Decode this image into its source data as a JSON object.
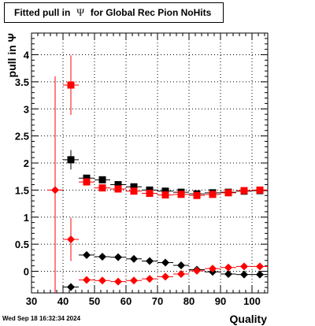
{
  "window": {
    "title_prefix": "Fitted pull in",
    "title_symbol": "Ψ",
    "title_suffix": "for Global Rec Pion NoHits",
    "footer": "Wed Sep 18 16:32:34 2024"
  },
  "chart_data": {
    "type": "scatter",
    "title": "Fitted pull in Ψ for Global Rec Pion NoHits",
    "xlabel": "Quality",
    "ylabel": "pull in Ψ",
    "xlim": [
      30,
      105
    ],
    "ylim": [
      -0.4,
      4.4
    ],
    "xticks": [
      30,
      40,
      50,
      60,
      70,
      80,
      90,
      100
    ],
    "yticks": [
      0,
      0.5,
      1,
      1.5,
      2,
      2.5,
      3,
      3.5,
      4
    ],
    "xtick_labels": [
      "30",
      "40",
      "50",
      "60",
      "70",
      "80",
      "90",
      "100"
    ],
    "ytick_labels": [
      "0",
      "0.5",
      "1",
      "1.5",
      "2",
      "2.5",
      "3",
      "3.5",
      "4"
    ],
    "grid": true,
    "series": [
      {
        "marker": "square",
        "color": "#000000",
        "x": [
          42.5,
          47.5,
          52.5,
          57.5,
          62.5,
          67.5,
          72.5,
          77.5,
          82.5,
          87.5,
          92.5,
          97.5,
          102.5
        ],
        "y": [
          2.06,
          1.72,
          1.69,
          1.6,
          1.56,
          1.5,
          1.48,
          1.46,
          1.43,
          1.45,
          1.46,
          1.48,
          1.49
        ],
        "yerr": [
          0.18,
          0.05,
          0.04,
          0.03,
          0.03,
          0.02,
          0.02,
          0.02,
          0.02,
          0.02,
          0.02,
          0.02,
          0.02
        ]
      },
      {
        "marker": "square",
        "color": "#ff0000",
        "x": [
          42.5,
          47.5,
          52.5,
          57.5,
          62.5,
          67.5,
          72.5,
          77.5,
          82.5,
          87.5,
          92.5,
          97.5,
          102.5
        ],
        "y": [
          3.44,
          1.65,
          1.54,
          1.52,
          1.48,
          1.44,
          1.41,
          1.42,
          1.4,
          1.42,
          1.45,
          1.49,
          1.5
        ],
        "yerr": [
          0.55,
          0.05,
          0.04,
          0.03,
          0.03,
          0.03,
          0.03,
          0.02,
          0.02,
          0.02,
          0.02,
          0.02,
          0.02
        ]
      },
      {
        "marker": "diamond",
        "color": "#000000",
        "x": [
          42.5,
          47.5,
          52.5,
          57.5,
          62.5,
          67.5,
          72.5,
          77.5,
          82.5,
          87.5,
          92.5,
          97.5,
          102.5
        ],
        "y": [
          -0.29,
          0.3,
          0.27,
          0.26,
          0.23,
          0.19,
          0.16,
          0.11,
          0.03,
          -0.01,
          -0.05,
          -0.06,
          -0.06
        ],
        "yerr": [
          0.07,
          0.03,
          0.02,
          0.02,
          0.02,
          0.02,
          0.02,
          0.02,
          0.02,
          0.02,
          0.02,
          0.02,
          0.02
        ]
      },
      {
        "marker": "diamond",
        "color": "#ff0000",
        "x": [
          37.5,
          42.5,
          47.5,
          52.5,
          57.5,
          62.5,
          67.5,
          72.5,
          77.5,
          82.5,
          87.5,
          92.5,
          97.5,
          102.5
        ],
        "y": [
          1.5,
          0.59,
          -0.16,
          -0.17,
          -0.19,
          -0.17,
          -0.14,
          -0.1,
          -0.05,
          0.01,
          0.05,
          0.07,
          0.09,
          0.09
        ],
        "yerr": [
          2.1,
          0.4,
          0.03,
          0.03,
          0.03,
          0.03,
          0.02,
          0.02,
          0.02,
          0.02,
          0.02,
          0.02,
          0.02,
          0.02
        ]
      }
    ]
  }
}
